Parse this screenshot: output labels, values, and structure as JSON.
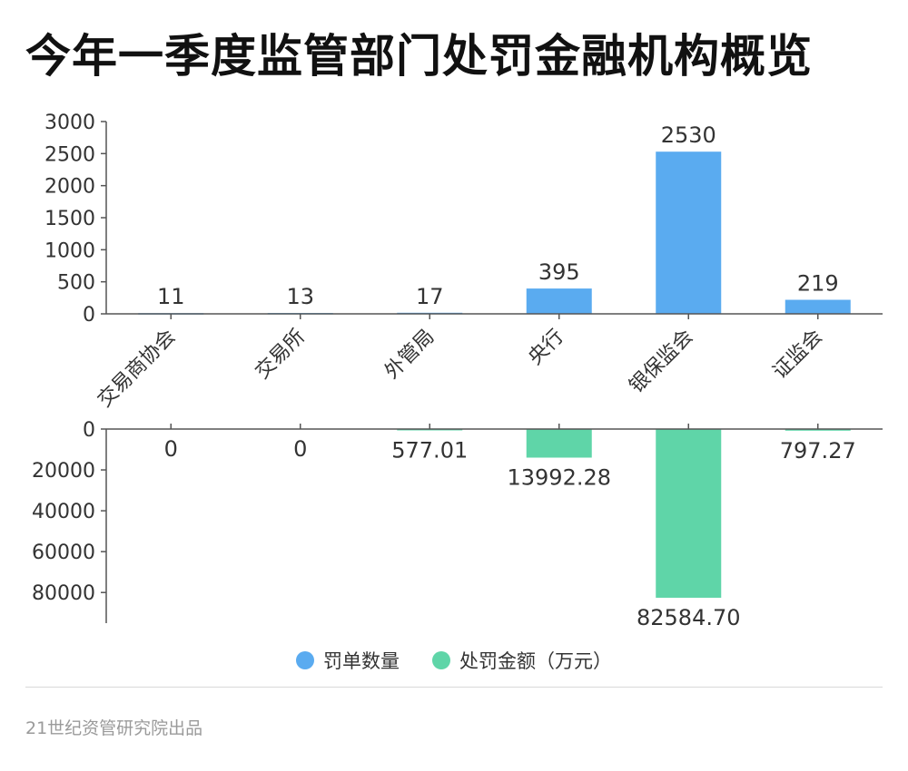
{
  "header": {
    "title": "今年一季度监管部门处罚金融机构概览"
  },
  "legend": [
    {
      "name": "罚单数量",
      "color": "#5aabf0"
    },
    {
      "name": "处罚金额（万元）",
      "color": "#5fd5a8"
    }
  ],
  "footer": {
    "source": "21世纪资管研究院出品"
  },
  "chart_data": [
    {
      "type": "bar",
      "categories": [
        "交易商协会",
        "交易所",
        "外管局",
        "央行",
        "银保监会",
        "证监会"
      ],
      "series": [
        {
          "name": "罚单数量",
          "values": [
            11,
            13,
            17,
            395,
            2530,
            219
          ],
          "color": "#5aabf0"
        }
      ],
      "data_labels": [
        "11",
        "13",
        "17",
        "395",
        "2530",
        "219"
      ],
      "ylim": [
        0,
        3000
      ],
      "yticks": [
        0,
        500,
        1000,
        1500,
        2000,
        2500,
        3000
      ],
      "ytick_labels": [
        "0",
        "500",
        "1000",
        "1500",
        "2000",
        "2500",
        "3000"
      ]
    },
    {
      "type": "bar",
      "orientation": "downward",
      "categories": [
        "交易商协会",
        "交易所",
        "外管局",
        "央行",
        "银保监会",
        "证监会"
      ],
      "series": [
        {
          "name": "处罚金额（万元）",
          "values": [
            0,
            0,
            577.01,
            13992.28,
            82584.7,
            797.27
          ],
          "color": "#5fd5a8"
        }
      ],
      "data_labels": [
        "0",
        "0",
        "577.01",
        "13992.28",
        "82584.70",
        "797.27"
      ],
      "ylim": [
        0,
        95000
      ],
      "yticks": [
        0,
        20000,
        40000,
        60000,
        80000
      ],
      "ytick_labels": [
        "0",
        "20000",
        "40000",
        "60000",
        "80000"
      ]
    }
  ]
}
